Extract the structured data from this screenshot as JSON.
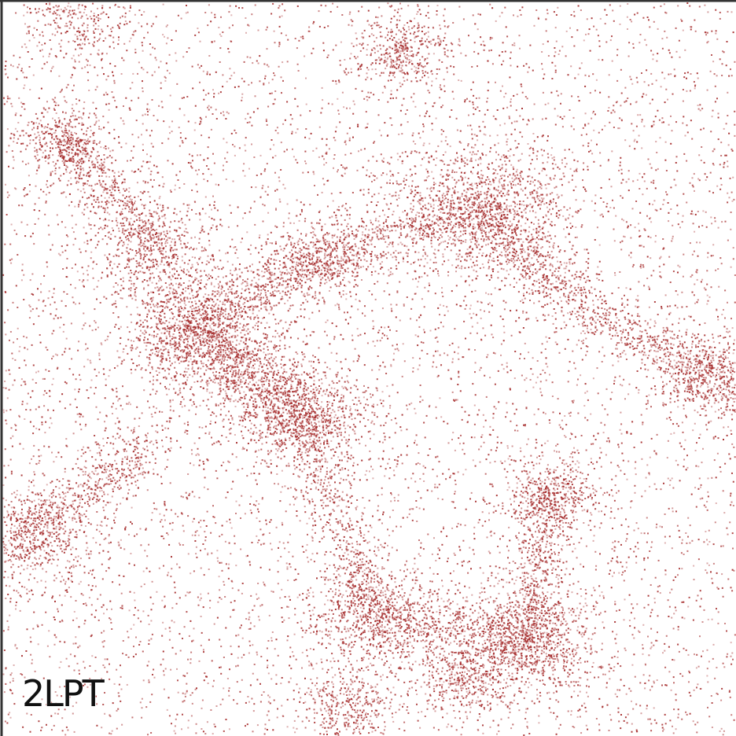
{
  "label": "2LPT"
}
